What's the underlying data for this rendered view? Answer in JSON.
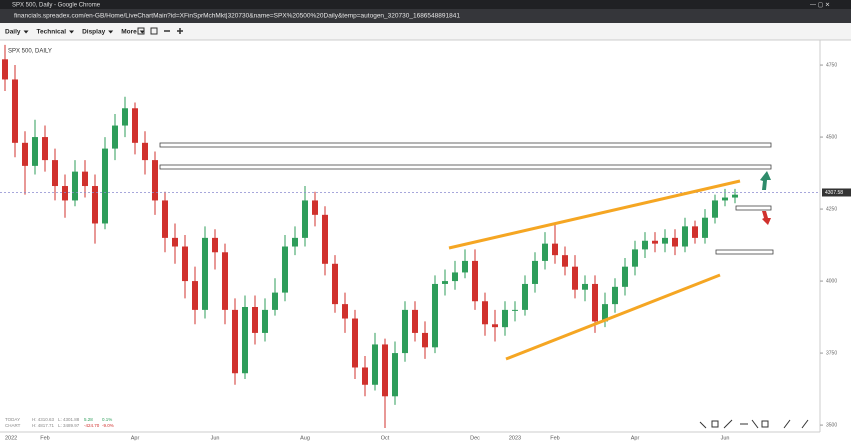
{
  "window": {
    "title": "SPX 500, Daily - Google Chrome",
    "url": "financials.spreadex.com/en-GB/Home/LiveChartMain?id=XFinSprMchMkt|320730&name=SPX%20500%20Daily&temp=autogen_320730_1686548891841"
  },
  "toolbar": [
    "Daily",
    "Technical",
    "Display",
    "More"
  ],
  "info": {
    "rows": [
      [
        "TODAY",
        "H: 4310.63",
        "L: 4301.88",
        "5.28",
        "0.1%"
      ],
      [
        "CHART",
        "H: 4817.71",
        "L: 3489.97",
        "-424.70",
        "-9.0%"
      ]
    ]
  },
  "chart_data": {
    "type": "candlestick",
    "title": "SPX 500, DAILY",
    "categories": [
      "2022",
      null,
      null,
      null,
      "Feb",
      null,
      null,
      null,
      null,
      null,
      null,
      null,
      null,
      "Apr",
      null,
      null,
      null,
      null,
      null,
      null,
      null,
      "Jun",
      null,
      null,
      null,
      null,
      null,
      null,
      null,
      null,
      "Aug",
      null,
      null,
      null,
      null,
      null,
      null,
      null,
      "Oct",
      null,
      null,
      null,
      null,
      null,
      null,
      null,
      null,
      "Dec",
      null,
      null,
      null,
      "2023",
      null,
      null,
      null,
      "Feb",
      null,
      null,
      null,
      null,
      null,
      null,
      null,
      "Apr",
      null,
      null,
      null,
      null,
      null,
      null,
      null,
      null,
      "Jun",
      null
    ],
    "open": [
      4770,
      4700,
      4480,
      4400,
      4500,
      4420,
      4330,
      4280,
      4380,
      4330,
      4200,
      4460,
      4540,
      4600,
      4480,
      4420,
      4280,
      4150,
      4120,
      4000,
      3900,
      4150,
      4100,
      3900,
      3680,
      3910,
      3820,
      3900,
      3960,
      4120,
      4150,
      4280,
      4230,
      4060,
      3920,
      3870,
      3700,
      3640,
      3780,
      3600,
      3750,
      3900,
      3820,
      3770,
      3990,
      4000,
      4030,
      4070,
      3930,
      3850,
      3840,
      3900,
      3900,
      3990,
      4070,
      4130,
      4090,
      4050,
      3970,
      3990,
      3860,
      3920,
      3980,
      4050,
      4110,
      4140,
      4130,
      4150,
      4120,
      4190,
      4150,
      4220,
      4280,
      4290
    ],
    "high": [
      4820,
      4750,
      4520,
      4560,
      4540,
      4460,
      4370,
      4420,
      4420,
      4370,
      4500,
      4580,
      4640,
      4620,
      4520,
      4450,
      4310,
      4200,
      4160,
      4050,
      4190,
      4180,
      4130,
      3940,
      3950,
      3950,
      3940,
      4010,
      4160,
      4190,
      4330,
      4310,
      4260,
      4090,
      3960,
      3900,
      3740,
      3820,
      3800,
      3790,
      3930,
      3930,
      3860,
      4020,
      4040,
      4070,
      4110,
      4110,
      3960,
      3900,
      3930,
      3930,
      4020,
      4100,
      4170,
      4200,
      4120,
      4090,
      4020,
      4020,
      3960,
      4010,
      4080,
      4140,
      4170,
      4170,
      4180,
      4180,
      4220,
      4210,
      4250,
      4300,
      4320,
      4320
    ],
    "low": [
      4660,
      4430,
      4300,
      4370,
      4380,
      4280,
      4220,
      4260,
      4290,
      4130,
      4180,
      4420,
      4500,
      4440,
      4370,
      4230,
      4100,
      4060,
      3940,
      3850,
      3870,
      4040,
      3850,
      3640,
      3660,
      3780,
      3790,
      3880,
      3930,
      4090,
      4120,
      4190,
      4020,
      3890,
      3820,
      3660,
      3600,
      3620,
      3490,
      3570,
      3720,
      3790,
      3730,
      3750,
      3950,
      3970,
      4010,
      3900,
      3810,
      3790,
      3810,
      3860,
      3880,
      3960,
      4040,
      4060,
      4020,
      3940,
      3930,
      3820,
      3840,
      3890,
      3950,
      4020,
      4080,
      4100,
      4100,
      4090,
      4100,
      4130,
      4130,
      4200,
      4260,
      4270
    ],
    "close": [
      4700,
      4480,
      4400,
      4500,
      4420,
      4330,
      4280,
      4380,
      4330,
      4200,
      4460,
      4540,
      4600,
      4480,
      4420,
      4280,
      4150,
      4120,
      4000,
      3900,
      4150,
      4100,
      3900,
      3680,
      3910,
      3820,
      3900,
      3960,
      4120,
      4150,
      4280,
      4230,
      4060,
      3920,
      3870,
      3700,
      3640,
      3780,
      3600,
      3750,
      3900,
      3820,
      3770,
      3990,
      4000,
      4030,
      4070,
      3930,
      3850,
      3840,
      3900,
      3900,
      3990,
      4070,
      4130,
      4090,
      4050,
      3970,
      3990,
      3860,
      3920,
      3980,
      4050,
      4110,
      4140,
      4130,
      4150,
      4120,
      4190,
      4150,
      4220,
      4280,
      4290,
      4300
    ],
    "up_color": "#2e9d5a",
    "down_color": "#d0312d",
    "last_price": {
      "value": 4307.58,
      "label": "4307.58"
    },
    "ylim": [
      3476,
      4837
    ],
    "yticks": [
      3500,
      3750,
      4000,
      4250,
      4500,
      4750
    ],
    "grid": false
  }
}
